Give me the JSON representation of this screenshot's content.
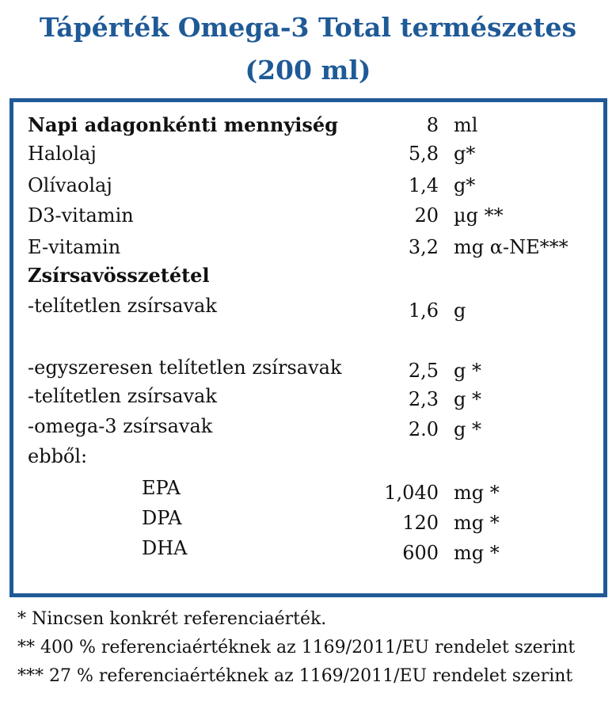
{
  "title_line1": "Tápérték Omega-3 Total természetes",
  "title_line2": "(200 ml)",
  "colors": {
    "accent": "#1f5a97",
    "text": "#111111"
  },
  "rows": [
    {
      "label": "Napi adagonkénti mennyiség",
      "value": "8",
      "unit": "ml"
    },
    {
      "label": "Halolaj",
      "value": "5,8",
      "unit": "g*"
    },
    {
      "label": "Olívaolaj",
      "value": "1,4",
      "unit": "g*"
    },
    {
      "label": "D3-vitamin",
      "value": "20",
      "unit": "µg **"
    },
    {
      "label": "E-vitamin",
      "value": "3,2",
      "unit": "mg α-NE***"
    },
    {
      "label": "Zsírsavösszetétel",
      "value": "",
      "unit": ""
    },
    {
      "label": "-telítetlen zsírsavak",
      "value": "1,6",
      "unit": "g"
    },
    {
      "label": "-egyszeresen telítetlen zsírsavak",
      "value": "2,5",
      "unit": "g *"
    },
    {
      "label": "-telítetlen zsírsavak",
      "value": "2,3",
      "unit": "g *"
    },
    {
      "label": "-omega-3 zsírsavak",
      "value": "2.0",
      "unit": "g *"
    },
    {
      "label": "ebből:",
      "value": "",
      "unit": ""
    },
    {
      "label": "EPA",
      "value": "1,040",
      "unit": "mg *"
    },
    {
      "label": "DPA",
      "value": "120",
      "unit": "mg *"
    },
    {
      "label": "DHA",
      "value": "600",
      "unit": "mg *"
    }
  ],
  "footnotes": [
    "* Nincsen konkrét referenciaérték.",
    "** 400 % referenciaértéknek az 1169/2011/EU rendelet szerint",
    "*** 27 % referenciaértéknek az 1169/2011/EU rendelet szerint"
  ]
}
